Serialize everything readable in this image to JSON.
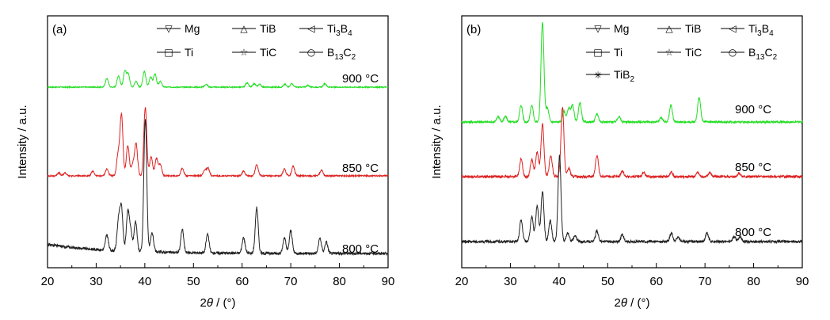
{
  "chart_data": [
    {
      "type": "line",
      "panel_label": "(a)",
      "xlabel_parts": [
        "2",
        "θ",
        " / (°)"
      ],
      "ylabel": "Intensity / a.u.",
      "xlim": [
        20,
        90
      ],
      "xticks": [
        "20",
        "30",
        "40",
        "50",
        "60",
        "70",
        "80",
        "90"
      ],
      "legend": [
        {
          "name": "Mg",
          "symbol": "▽"
        },
        {
          "name": "TiB",
          "symbol": "△"
        },
        {
          "name_parts": [
            "Ti",
            "3",
            "B",
            "4"
          ],
          "symbol": "◁"
        },
        {
          "name": "Ti",
          "symbol": "□"
        },
        {
          "name": "TiC",
          "symbol": "☆"
        },
        {
          "name_parts": [
            "B",
            "13",
            "C",
            "2"
          ],
          "symbol": "○"
        }
      ],
      "series": [
        {
          "label": "900 °C",
          "color": "#22dd22",
          "peaks": [
            [
              32.2,
              0.3
            ],
            [
              34.6,
              0.4
            ],
            [
              35.9,
              0.55
            ],
            [
              36.6,
              0.45
            ],
            [
              38.2,
              0.2
            ],
            [
              39.9,
              0.55
            ],
            [
              41.2,
              0.35
            ],
            [
              42.1,
              0.45
            ],
            [
              43.2,
              0.2
            ],
            [
              52.6,
              0.1
            ],
            [
              61.0,
              0.15
            ],
            [
              62.5,
              0.12
            ],
            [
              63.6,
              0.1
            ],
            [
              68.8,
              0.1
            ],
            [
              70.2,
              0.12
            ],
            [
              73.5,
              0.06
            ],
            [
              77.0,
              0.12
            ]
          ]
        },
        {
          "label": "850 °C",
          "color": "#dd2222",
          "peaks": [
            [
              22.3,
              0.08
            ],
            [
              23.6,
              0.08
            ],
            [
              29.3,
              0.12
            ],
            [
              32.2,
              0.18
            ],
            [
              34.5,
              0.55
            ],
            [
              35.2,
              1.6
            ],
            [
              36.5,
              0.8
            ],
            [
              37.5,
              0.3
            ],
            [
              38.2,
              0.85
            ],
            [
              40.1,
              1.8
            ],
            [
              41.3,
              0.5
            ],
            [
              42.4,
              0.45
            ],
            [
              43.2,
              0.3
            ],
            [
              47.7,
              0.2
            ],
            [
              52.3,
              0.15
            ],
            [
              53.0,
              0.2
            ],
            [
              60.3,
              0.12
            ],
            [
              63.0,
              0.3
            ],
            [
              68.7,
              0.18
            ],
            [
              70.5,
              0.25
            ],
            [
              76.3,
              0.15
            ]
          ]
        },
        {
          "label": "800 °C",
          "color": "#222222",
          "peaks": [
            [
              32.2,
              0.2
            ],
            [
              34.6,
              0.4
            ],
            [
              35.2,
              0.55
            ],
            [
              36.5,
              0.5
            ],
            [
              37.1,
              0.25
            ],
            [
              38.1,
              0.4
            ],
            [
              40.1,
              1.75
            ],
            [
              41.5,
              0.25
            ],
            [
              47.7,
              0.3
            ],
            [
              52.9,
              0.25
            ],
            [
              60.3,
              0.2
            ],
            [
              63.0,
              0.6
            ],
            [
              68.7,
              0.2
            ],
            [
              70.0,
              0.3
            ],
            [
              76.0,
              0.2
            ],
            [
              77.3,
              0.15
            ]
          ]
        }
      ]
    },
    {
      "type": "line",
      "panel_label": "(b)",
      "xlabel_parts": [
        "2",
        "θ",
        " / (°)"
      ],
      "ylabel": "Intensity / a.u.",
      "xlim": [
        20,
        90
      ],
      "xticks": [
        "20",
        "30",
        "40",
        "50",
        "60",
        "70",
        "80",
        "90"
      ],
      "legend": [
        {
          "name": "Mg",
          "symbol": "▽"
        },
        {
          "name": "TiB",
          "symbol": "△"
        },
        {
          "name_parts": [
            "Ti",
            "3",
            "B",
            "4"
          ],
          "symbol": "◁"
        },
        {
          "name": "Ti",
          "symbol": "□"
        },
        {
          "name": "TiC",
          "symbol": "☆"
        },
        {
          "name_parts": [
            "B",
            "13",
            "C",
            "2"
          ],
          "symbol": "○"
        },
        {
          "name_parts": [
            "TiB",
            "2"
          ],
          "symbol": "✳"
        }
      ],
      "series": [
        {
          "label": "900 °C",
          "color": "#22dd22",
          "peaks": [
            [
              27.5,
              0.1
            ],
            [
              29.0,
              0.1
            ],
            [
              32.2,
              0.3
            ],
            [
              34.4,
              0.3
            ],
            [
              36.6,
              1.8
            ],
            [
              37.6,
              0.25
            ],
            [
              41.0,
              0.2
            ],
            [
              42.0,
              0.25
            ],
            [
              42.8,
              0.3
            ],
            [
              44.3,
              0.35
            ],
            [
              47.8,
              0.15
            ],
            [
              52.3,
              0.1
            ],
            [
              61.0,
              0.08
            ],
            [
              63.0,
              0.3
            ],
            [
              68.8,
              0.45
            ]
          ]
        },
        {
          "label": "850 °C",
          "color": "#dd2222",
          "peaks": [
            [
              32.2,
              0.25
            ],
            [
              34.4,
              0.25
            ],
            [
              35.5,
              0.35
            ],
            [
              36.6,
              0.75
            ],
            [
              38.3,
              0.3
            ],
            [
              40.7,
              1.0
            ],
            [
              42.0,
              0.12
            ],
            [
              47.8,
              0.3
            ],
            [
              53.0,
              0.08
            ],
            [
              57.4,
              0.06
            ],
            [
              63.1,
              0.06
            ],
            [
              68.5,
              0.06
            ],
            [
              71.0,
              0.06
            ],
            [
              77.0,
              0.05
            ]
          ]
        },
        {
          "label": "800 °C",
          "color": "#222222",
          "peaks": [
            [
              32.2,
              0.3
            ],
            [
              34.4,
              0.35
            ],
            [
              35.5,
              0.5
            ],
            [
              36.6,
              0.7
            ],
            [
              38.2,
              0.3
            ],
            [
              40.1,
              1.2
            ],
            [
              41.8,
              0.12
            ],
            [
              43.3,
              0.08
            ],
            [
              47.8,
              0.15
            ],
            [
              53.0,
              0.1
            ],
            [
              63.1,
              0.12
            ],
            [
              64.5,
              0.06
            ],
            [
              70.4,
              0.12
            ],
            [
              76.0,
              0.07
            ],
            [
              77.2,
              0.07
            ]
          ]
        }
      ]
    }
  ]
}
